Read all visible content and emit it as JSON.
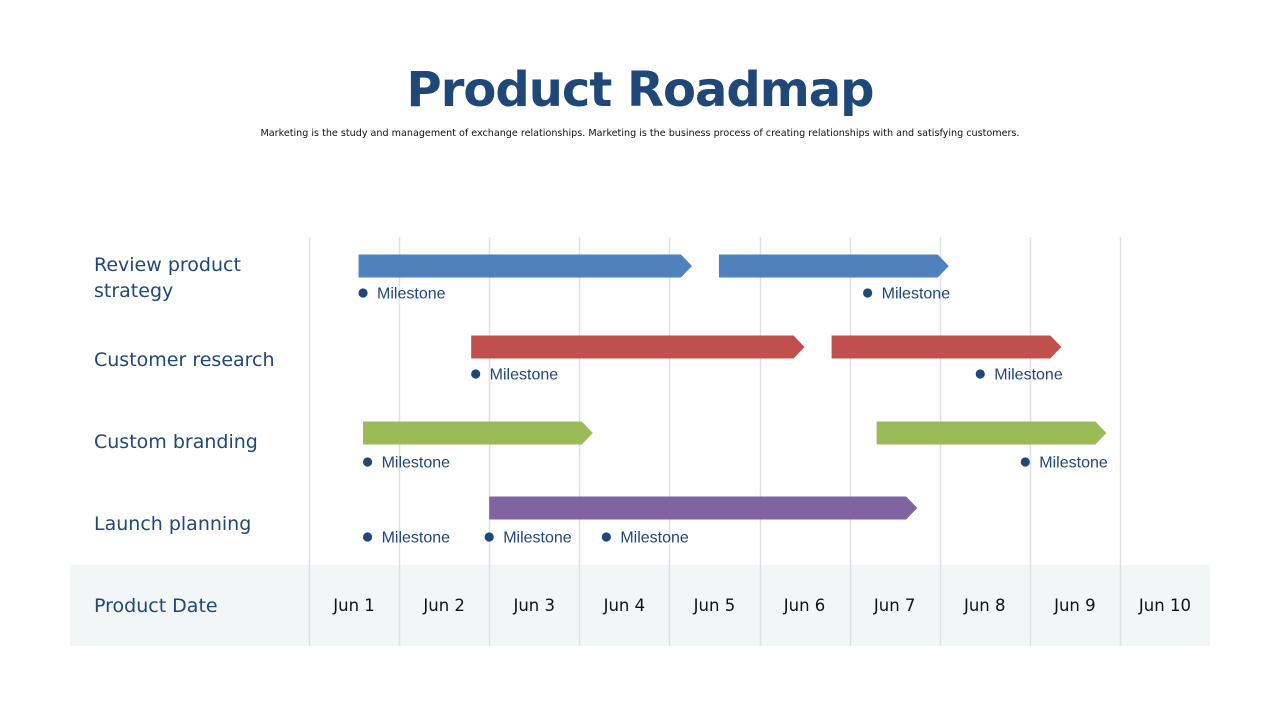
{
  "title": "Product Roadmap",
  "subtitle": "Marketing is the study and management of exchange relationships. Marketing is the  business process of creating relationships with and satisfying customers.",
  "colors": {
    "title": "#1f4777",
    "label": "#1f4777",
    "grid": "#dde1e4",
    "band": "#f3f6f7",
    "milestone_dot": "#1f4777",
    "milestone_text": "#1f4777"
  },
  "chart_data": {
    "type": "gantt",
    "row_header_label": "Product Date",
    "x_ticks": [
      "Jun 1",
      "Jun 2",
      "Jun 3",
      "Jun 4",
      "Jun 5",
      "Jun 6",
      "Jun 7",
      "Jun 8",
      "Jun 9",
      "Jun 10"
    ],
    "rows": [
      {
        "label": "Review product strategy",
        "color": "#4f81bd",
        "bars": [
          {
            "start": 0.55,
            "end": 4.25
          },
          {
            "start": 4.55,
            "end": 7.1
          }
        ],
        "milestones": [
          {
            "x": 0.6,
            "label": "Milestone"
          },
          {
            "x": 6.2,
            "label": "Milestone"
          }
        ]
      },
      {
        "label": "Customer research",
        "color": "#c0504d",
        "bars": [
          {
            "start": 1.8,
            "end": 5.5
          },
          {
            "start": 5.8,
            "end": 8.35
          }
        ],
        "milestones": [
          {
            "x": 1.85,
            "label": "Milestone"
          },
          {
            "x": 7.45,
            "label": "Milestone"
          }
        ]
      },
      {
        "label": "Custom branding",
        "color": "#9bbb59",
        "bars": [
          {
            "start": 0.6,
            "end": 3.15
          },
          {
            "start": 6.3,
            "end": 8.85
          }
        ],
        "milestones": [
          {
            "x": 0.65,
            "label": "Milestone"
          },
          {
            "x": 7.95,
            "label": "Milestone"
          }
        ]
      },
      {
        "label": "Launch planning",
        "color": "#8064a2",
        "bars": [
          {
            "start": 2.0,
            "end": 6.75
          }
        ],
        "milestones": [
          {
            "x": 0.65,
            "label": "Milestone"
          },
          {
            "x": 2.0,
            "label": "Milestone"
          },
          {
            "x": 3.3,
            "label": "Milestone"
          }
        ]
      }
    ]
  }
}
